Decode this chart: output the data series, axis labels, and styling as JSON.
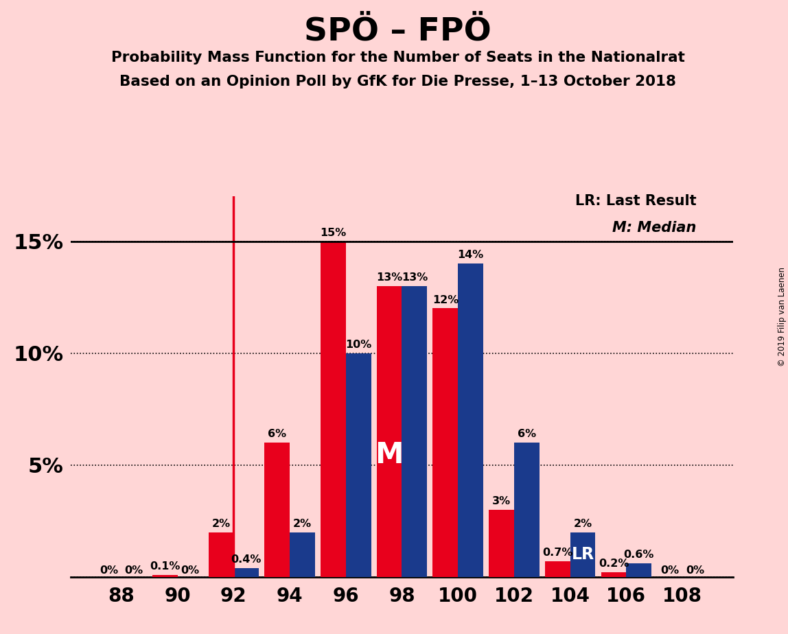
{
  "title": "SPÖ – FPÖ",
  "subtitle1": "Probability Mass Function for the Number of Seats in the Nationalrat",
  "subtitle2": "Based on an Opinion Poll by GfK for Die Presse, 1–13 October 2018",
  "background_color": "#FFD6D6",
  "seats": [
    88,
    90,
    92,
    94,
    96,
    98,
    100,
    102,
    104,
    106,
    108
  ],
  "blue_values": [
    0.0,
    0.0,
    0.4,
    2.0,
    10.0,
    13.0,
    14.0,
    6.0,
    2.0,
    0.6,
    0.0
  ],
  "red_values": [
    0.0,
    0.1,
    2.0,
    6.0,
    15.0,
    13.0,
    12.0,
    3.0,
    0.7,
    0.2,
    0.0
  ],
  "blue_labels": [
    "0%",
    "0%",
    "0.4%",
    "2%",
    "10%",
    "13%",
    "14%",
    "6%",
    "2%",
    "0.6%",
    "0%"
  ],
  "red_labels": [
    "0%",
    "0.1%",
    "2%",
    "6%",
    "15%",
    "13%",
    "12%",
    "3%",
    "0.7%",
    "0.2%",
    "0%"
  ],
  "blue_color": "#1a3a8c",
  "red_color": "#e8001c",
  "lr_line_x": 92,
  "median_seat": 98,
  "lr_seat": 104,
  "lr_label": "LR",
  "median_label": "M",
  "ylim": [
    0,
    17
  ],
  "yticks": [
    0,
    5,
    10,
    15
  ],
  "ytick_labels": [
    "",
    "5%",
    "10%",
    "15%"
  ],
  "copyright_text": "© 2019 Filip van Laenen",
  "bar_width": 0.9,
  "xlim": [
    86.2,
    109.8
  ]
}
